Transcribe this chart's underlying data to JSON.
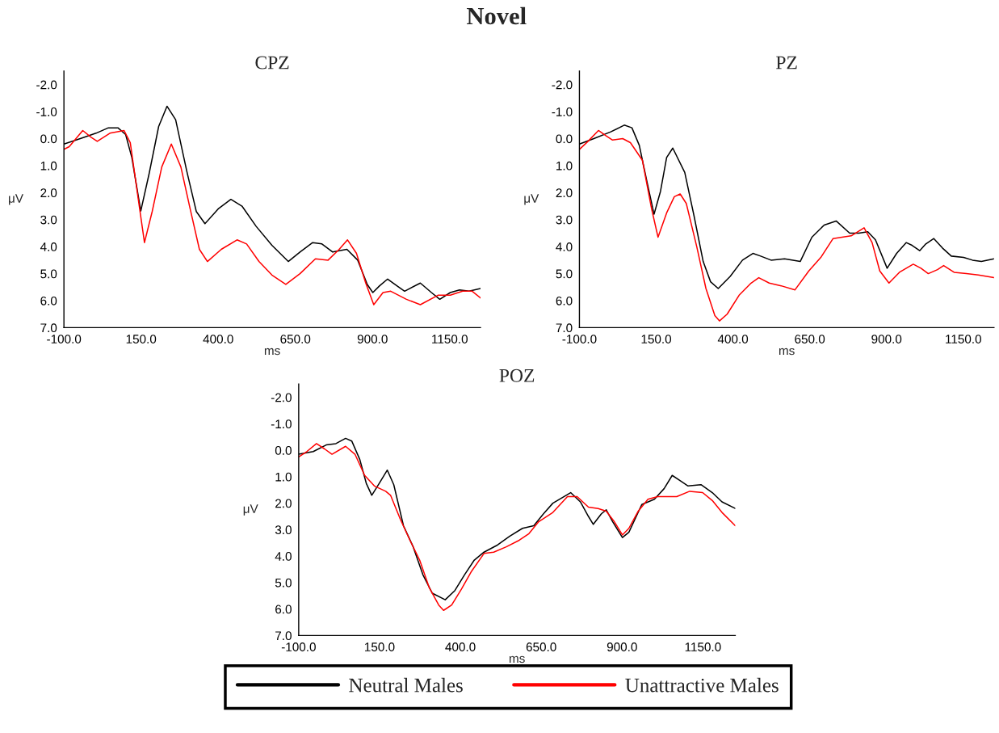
{
  "chart_data": [
    {
      "type": "line",
      "title": "CPZ",
      "annotations": [
        "Novel"
      ],
      "xlabel": "ms",
      "ylabel": "μV",
      "xlim": [
        -100,
        1250
      ],
      "ylim": [
        7,
        -2.5
      ],
      "xticks": [
        {
          "value": -100,
          "label": "-100.0"
        },
        {
          "value": 150,
          "label": "150.0"
        },
        {
          "value": 400,
          "label": "400.0"
        },
        {
          "value": 650,
          "label": "650.0"
        },
        {
          "value": 900,
          "label": "900.0"
        },
        {
          "value": 1150,
          "label": "1150.0"
        }
      ],
      "yticks": [
        {
          "value": -2,
          "label": "-2.0"
        },
        {
          "value": -1,
          "label": "-1.0"
        },
        {
          "value": 0,
          "label": "0.0"
        },
        {
          "value": 1,
          "label": "1.0"
        },
        {
          "value": 2,
          "label": "2.0"
        },
        {
          "value": 3,
          "label": "3.0"
        },
        {
          "value": 4,
          "label": "4.0"
        },
        {
          "value": 5,
          "label": "5.0"
        },
        {
          "value": 6,
          "label": "6.0"
        },
        {
          "value": 7,
          "label": "7.0"
        }
      ],
      "series": [
        {
          "color": "#000000",
          "x": [
            -100,
            -47,
            4,
            44,
            75,
            100,
            120,
            149,
            176,
            207,
            234,
            262,
            298,
            329,
            357,
            400,
            441,
            477,
            523,
            574,
            627,
            665,
            706,
            736,
            771,
            817,
            852,
            883,
            901,
            923,
            949,
            979,
            1004,
            1055,
            1091,
            1118,
            1152,
            1182,
            1213,
            1250
          ],
          "values": [
            0.2,
            0.0,
            -0.2,
            -0.4,
            -0.4,
            -0.15,
            0.7,
            2.68,
            1.3,
            -0.45,
            -1.2,
            -0.7,
            1.2,
            2.7,
            3.15,
            2.6,
            2.25,
            2.5,
            3.25,
            3.95,
            4.55,
            4.2,
            3.85,
            3.9,
            4.2,
            4.1,
            4.5,
            5.4,
            5.7,
            5.45,
            5.2,
            5.45,
            5.65,
            5.35,
            5.7,
            5.95,
            5.7,
            5.6,
            5.65,
            5.55
          ]
        },
        {
          "color": "#ff0000",
          "x": [
            -100,
            -83,
            -39,
            -12,
            8,
            49,
            95,
            115,
            141,
            161,
            186,
            217,
            248,
            279,
            309,
            339,
            365,
            410,
            461,
            492,
            532,
            574,
            619,
            665,
            715,
            756,
            792,
            819,
            848,
            878,
            904,
            934,
            959,
            1010,
            1055,
            1112,
            1152,
            1192,
            1223,
            1250
          ],
          "values": [
            0.4,
            0.3,
            -0.3,
            -0.05,
            0.1,
            -0.2,
            -0.3,
            0.15,
            2.25,
            3.85,
            2.7,
            1.05,
            0.2,
            1.05,
            2.6,
            4.1,
            4.55,
            4.1,
            3.75,
            3.9,
            4.55,
            5.05,
            5.4,
            5.0,
            4.45,
            4.5,
            4.1,
            3.75,
            4.25,
            5.35,
            6.15,
            5.7,
            5.65,
            5.95,
            6.15,
            5.8,
            5.8,
            5.65,
            5.65,
            5.9
          ]
        }
      ]
    },
    {
      "type": "line",
      "title": "PZ",
      "xlabel": "ms",
      "ylabel": "μV",
      "xlim": [
        -100,
        1250
      ],
      "ylim": [
        7,
        -2.5
      ],
      "xticks": [
        {
          "value": -100,
          "label": "-100.0"
        },
        {
          "value": 150,
          "label": "150.0"
        },
        {
          "value": 400,
          "label": "400.0"
        },
        {
          "value": 650,
          "label": "650.0"
        },
        {
          "value": 900,
          "label": "900.0"
        },
        {
          "value": 1150,
          "label": "1150.0"
        }
      ],
      "yticks": [
        {
          "value": -2,
          "label": "-2.0"
        },
        {
          "value": -1,
          "label": "-1.0"
        },
        {
          "value": 0,
          "label": "0.0"
        },
        {
          "value": 1,
          "label": "1.0"
        },
        {
          "value": 2,
          "label": "2.0"
        },
        {
          "value": 3,
          "label": "3.0"
        },
        {
          "value": 4,
          "label": "4.0"
        },
        {
          "value": 5,
          "label": "5.0"
        },
        {
          "value": 6,
          "label": "6.0"
        },
        {
          "value": 7,
          "label": "7.0"
        }
      ],
      "series": [
        {
          "color": "#000000",
          "x": [
            -100,
            -53,
            2,
            46,
            71,
            95,
            120,
            143,
            164,
            184,
            204,
            243,
            273,
            303,
            327,
            352,
            391,
            431,
            465,
            490,
            524,
            568,
            619,
            657,
            697,
            736,
            780,
            810,
            839,
            864,
            902,
            933,
            964,
            983,
            1008,
            1028,
            1054,
            1082,
            1111,
            1151,
            1180,
            1209,
            1250
          ],
          "values": [
            0.2,
            0.0,
            -0.25,
            -0.5,
            -0.4,
            0.25,
            1.6,
            2.8,
            1.95,
            0.7,
            0.35,
            1.25,
            2.85,
            4.55,
            5.3,
            5.55,
            5.1,
            4.5,
            4.25,
            4.35,
            4.5,
            4.45,
            4.55,
            3.65,
            3.2,
            3.05,
            3.5,
            3.5,
            3.45,
            3.75,
            4.8,
            4.25,
            3.85,
            3.95,
            4.15,
            3.9,
            3.7,
            4.05,
            4.35,
            4.4,
            4.5,
            4.55,
            4.45
          ]
        },
        {
          "color": "#ff0000",
          "x": [
            -100,
            -72,
            -38,
            -13,
            7,
            41,
            66,
            105,
            135,
            156,
            184,
            209,
            228,
            248,
            282,
            312,
            341,
            356,
            381,
            420,
            459,
            484,
            518,
            557,
            602,
            647,
            686,
            726,
            755,
            785,
            827,
            853,
            878,
            908,
            942,
            987,
            1012,
            1036,
            1066,
            1086,
            1120,
            1160,
            1199,
            1250
          ],
          "values": [
            0.4,
            0.1,
            -0.3,
            -0.1,
            0.05,
            0.0,
            0.15,
            0.8,
            2.6,
            3.65,
            2.75,
            2.15,
            2.05,
            2.4,
            4.0,
            5.55,
            6.55,
            6.75,
            6.5,
            5.8,
            5.35,
            5.15,
            5.35,
            5.45,
            5.6,
            4.9,
            4.4,
            3.7,
            3.65,
            3.6,
            3.3,
            3.85,
            4.9,
            5.35,
            4.95,
            4.65,
            4.8,
            5.0,
            4.85,
            4.7,
            4.95,
            5.0,
            5.05,
            5.15
          ]
        }
      ]
    },
    {
      "type": "line",
      "title": "POZ",
      "xlabel": "ms",
      "ylabel": "μV",
      "xlim": [
        -100,
        1250
      ],
      "ylim": [
        7,
        -2.5
      ],
      "legend": "bottom",
      "xticks": [
        {
          "value": -100,
          "label": "-100.0"
        },
        {
          "value": 150,
          "label": "150.0"
        },
        {
          "value": 400,
          "label": "400.0"
        },
        {
          "value": 650,
          "label": "650.0"
        },
        {
          "value": 900,
          "label": "900.0"
        },
        {
          "value": 1150,
          "label": "1150.0"
        }
      ],
      "yticks": [
        {
          "value": -2,
          "label": "-2.0"
        },
        {
          "value": -1,
          "label": "-1.0"
        },
        {
          "value": 0,
          "label": "0.0"
        },
        {
          "value": 1,
          "label": "1.0"
        },
        {
          "value": 2,
          "label": "2.0"
        },
        {
          "value": 3,
          "label": "3.0"
        },
        {
          "value": 4,
          "label": "4.0"
        },
        {
          "value": 5,
          "label": "5.0"
        },
        {
          "value": 6,
          "label": "6.0"
        },
        {
          "value": 7,
          "label": "7.0"
        }
      ],
      "series": [
        {
          "name": "Neutral Males",
          "color": "#000000",
          "x": [
            -100,
            -55,
            -15,
            15,
            45,
            64,
            89,
            109,
            126,
            149,
            174,
            194,
            224,
            254,
            284,
            313,
            353,
            383,
            413,
            443,
            473,
            512,
            552,
            592,
            627,
            657,
            686,
            741,
            771,
            796,
            811,
            836,
            851,
            871,
            901,
            921,
            961,
            1000,
            1030,
            1055,
            1080,
            1104,
            1144,
            1179,
            1209,
            1250
          ],
          "values": [
            0.15,
            0.05,
            -0.2,
            -0.25,
            -0.45,
            -0.35,
            0.35,
            1.25,
            1.7,
            1.25,
            0.75,
            1.3,
            2.85,
            3.65,
            4.7,
            5.4,
            5.65,
            5.3,
            4.7,
            4.15,
            3.85,
            3.6,
            3.25,
            2.95,
            2.85,
            2.4,
            2.0,
            1.6,
            1.95,
            2.5,
            2.8,
            2.4,
            2.25,
            2.7,
            3.3,
            3.1,
            2.05,
            1.85,
            1.45,
            0.95,
            1.15,
            1.35,
            1.3,
            1.6,
            1.95,
            2.2
          ]
        },
        {
          "name": "Unattractive Males",
          "color": "#ff0000",
          "x": [
            -100,
            -75,
            -45,
            -20,
            3,
            45,
            74,
            104,
            134,
            169,
            184,
            214,
            244,
            274,
            304,
            333,
            348,
            373,
            403,
            433,
            473,
            503,
            542,
            582,
            612,
            642,
            686,
            731,
            761,
            796,
            826,
            851,
            876,
            901,
            921,
            950,
            980,
            1010,
            1069,
            1109,
            1149,
            1179,
            1209,
            1250
          ],
          "values": [
            0.25,
            0.05,
            -0.25,
            -0.05,
            0.15,
            -0.15,
            0.15,
            0.95,
            1.35,
            1.55,
            1.7,
            2.6,
            3.4,
            4.15,
            5.2,
            5.85,
            6.05,
            5.85,
            5.25,
            4.6,
            3.9,
            3.85,
            3.65,
            3.4,
            3.15,
            2.7,
            2.35,
            1.75,
            1.75,
            2.15,
            2.2,
            2.3,
            2.7,
            3.2,
            2.95,
            2.3,
            1.85,
            1.75,
            1.75,
            1.55,
            1.6,
            1.9,
            2.35,
            2.85
          ]
        }
      ]
    }
  ]
}
